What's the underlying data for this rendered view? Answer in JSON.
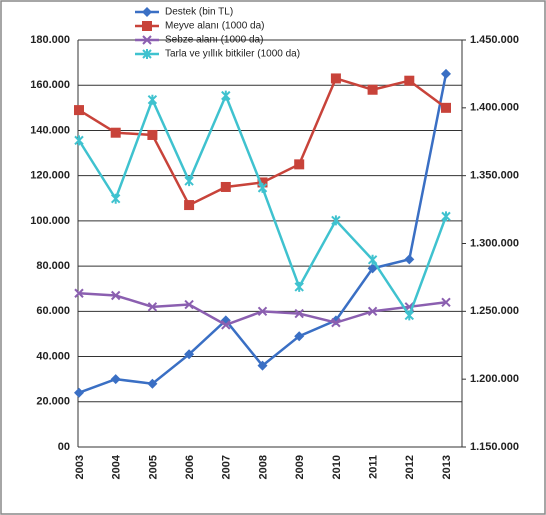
{
  "chart_data": {
    "type": "line",
    "categories": [
      "2003",
      "2004",
      "2005",
      "2006",
      "2007",
      "2008",
      "2009",
      "2010",
      "2011",
      "2012",
      "2013"
    ],
    "series": [
      {
        "name": "Destek (bin TL)",
        "color": "#3a6fc4",
        "marker": "diamond",
        "values": [
          24000,
          30000,
          28000,
          41000,
          56000,
          36000,
          49000,
          56000,
          79000,
          83000,
          165000
        ]
      },
      {
        "name": "Meyve alanı (1000 da)",
        "color": "#c8433a",
        "marker": "square",
        "values": [
          149000,
          139000,
          138000,
          107000,
          115000,
          117000,
          125000,
          163000,
          158000,
          162000,
          150000
        ]
      },
      {
        "name": "Sebze alanı (1000 da)",
        "color": "#8b5fb0",
        "marker": "x",
        "values": [
          68000,
          67000,
          62000,
          63000,
          54000,
          60000,
          59000,
          55000,
          60000,
          62000,
          64000
        ]
      },
      {
        "name": "Tarla ve yıllık bitkiler (1000 da)",
        "color": "#3fc2cf",
        "marker": "star",
        "axis": "y2",
        "values": [
          1376000,
          1333000,
          1406000,
          1346000,
          1409000,
          1341000,
          1268000,
          1317000,
          1288000,
          1247000,
          1320000
        ]
      }
    ],
    "ylim": [
      0,
      180000
    ],
    "yticks": [
      {
        "value": 0,
        "label": "00"
      },
      {
        "value": 20000,
        "label": "20.000"
      },
      {
        "value": 40000,
        "label": "40.000"
      },
      {
        "value": 60000,
        "label": "60.000"
      },
      {
        "value": 80000,
        "label": "80.000"
      },
      {
        "value": 100000,
        "label": "100.000"
      },
      {
        "value": 120000,
        "label": "120.000"
      },
      {
        "value": 140000,
        "label": "140.000"
      },
      {
        "value": 160000,
        "label": "160.000"
      },
      {
        "value": 180000,
        "label": "180.000"
      }
    ],
    "y2lim": [
      1150000,
      1450000
    ],
    "y2ticks": [
      {
        "value": 1150000,
        "label": "1.150.000"
      },
      {
        "value": 1200000,
        "label": "1.200.000"
      },
      {
        "value": 1250000,
        "label": "1.250.000"
      },
      {
        "value": 1300000,
        "label": "1.300.000"
      },
      {
        "value": 1350000,
        "label": "1.350.000"
      },
      {
        "value": 1400000,
        "label": "1.400.000"
      },
      {
        "value": 1450000,
        "label": "1.450.000"
      }
    ],
    "grid": true
  }
}
